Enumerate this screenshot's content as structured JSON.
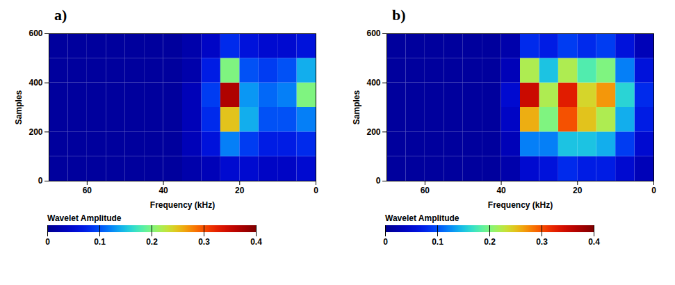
{
  "chart_data": [
    {
      "type": "heatmap",
      "title": "a)",
      "x_label": "Frequency (kHz)",
      "y_label": "Samples",
      "xlim": [
        70,
        0
      ],
      "xticks": [
        60,
        40,
        20,
        0
      ],
      "ylim": [
        0,
        600
      ],
      "yticks": [
        0,
        200,
        400,
        600
      ],
      "x_bins": [
        0,
        5,
        10,
        15,
        20,
        25,
        30,
        35,
        40,
        45,
        50,
        55,
        60,
        65,
        70
      ],
      "y_bins": [
        0,
        100,
        200,
        300,
        400,
        500,
        600
      ],
      "values": [
        [
          0.05,
          0.04,
          0.04,
          0.05,
          0.05,
          0.03,
          0.02,
          0.01,
          0.01,
          0.01,
          0.01,
          0.01,
          0.01,
          0.01
        ],
        [
          0.08,
          0.07,
          0.07,
          0.09,
          0.12,
          0.06,
          0.03,
          0.01,
          0.01,
          0.01,
          0.01,
          0.01,
          0.01,
          0.01
        ],
        [
          0.12,
          0.1,
          0.1,
          0.14,
          0.25,
          0.08,
          0.03,
          0.01,
          0.01,
          0.01,
          0.01,
          0.01,
          0.01,
          0.01
        ],
        [
          0.2,
          0.12,
          0.11,
          0.13,
          0.37,
          0.09,
          0.03,
          0.01,
          0.01,
          0.01,
          0.01,
          0.01,
          0.01,
          0.01
        ],
        [
          0.14,
          0.1,
          0.09,
          0.1,
          0.2,
          0.07,
          0.02,
          0.01,
          0.01,
          0.01,
          0.01,
          0.01,
          0.01,
          0.01
        ],
        [
          0.06,
          0.05,
          0.05,
          0.06,
          0.08,
          0.04,
          0.02,
          0.01,
          0.01,
          0.01,
          0.01,
          0.01,
          0.01,
          0.01
        ]
      ],
      "color_label": "Wavelet Amplitude",
      "color_range": [
        0,
        0.4
      ],
      "color_ticks": [
        0,
        0.1,
        0.2,
        0.3,
        0.4
      ]
    },
    {
      "type": "heatmap",
      "title": "b)",
      "x_label": "Frequency (kHz)",
      "y_label": "Samples",
      "xlim": [
        70,
        0
      ],
      "xticks": [
        60,
        40,
        20,
        0
      ],
      "ylim": [
        0,
        600
      ],
      "yticks": [
        0,
        200,
        400,
        600
      ],
      "x_bins": [
        0,
        5,
        10,
        15,
        20,
        25,
        30,
        35,
        40,
        45,
        50,
        55,
        60,
        65,
        70
      ],
      "y_bins": [
        0,
        100,
        200,
        300,
        400,
        500,
        600
      ],
      "values": [
        [
          0.03,
          0.05,
          0.07,
          0.07,
          0.08,
          0.06,
          0.05,
          0.02,
          0.01,
          0.01,
          0.01,
          0.01,
          0.01,
          0.01
        ],
        [
          0.05,
          0.09,
          0.14,
          0.15,
          0.15,
          0.12,
          0.12,
          0.03,
          0.01,
          0.01,
          0.01,
          0.01,
          0.01,
          0.01
        ],
        [
          0.07,
          0.14,
          0.22,
          0.25,
          0.3,
          0.2,
          0.26,
          0.04,
          0.01,
          0.01,
          0.01,
          0.01,
          0.01,
          0.01
        ],
        [
          0.08,
          0.16,
          0.27,
          0.24,
          0.33,
          0.22,
          0.35,
          0.05,
          0.01,
          0.01,
          0.01,
          0.01,
          0.01,
          0.01
        ],
        [
          0.06,
          0.12,
          0.2,
          0.18,
          0.22,
          0.15,
          0.22,
          0.03,
          0.01,
          0.01,
          0.01,
          0.01,
          0.01,
          0.01
        ],
        [
          0.03,
          0.06,
          0.09,
          0.08,
          0.09,
          0.07,
          0.08,
          0.02,
          0.01,
          0.01,
          0.01,
          0.01,
          0.01,
          0.01
        ]
      ],
      "color_label": "Wavelet Amplitude",
      "color_range": [
        0,
        0.4
      ],
      "color_ticks": [
        0,
        0.1,
        0.2,
        0.3,
        0.4
      ]
    }
  ]
}
